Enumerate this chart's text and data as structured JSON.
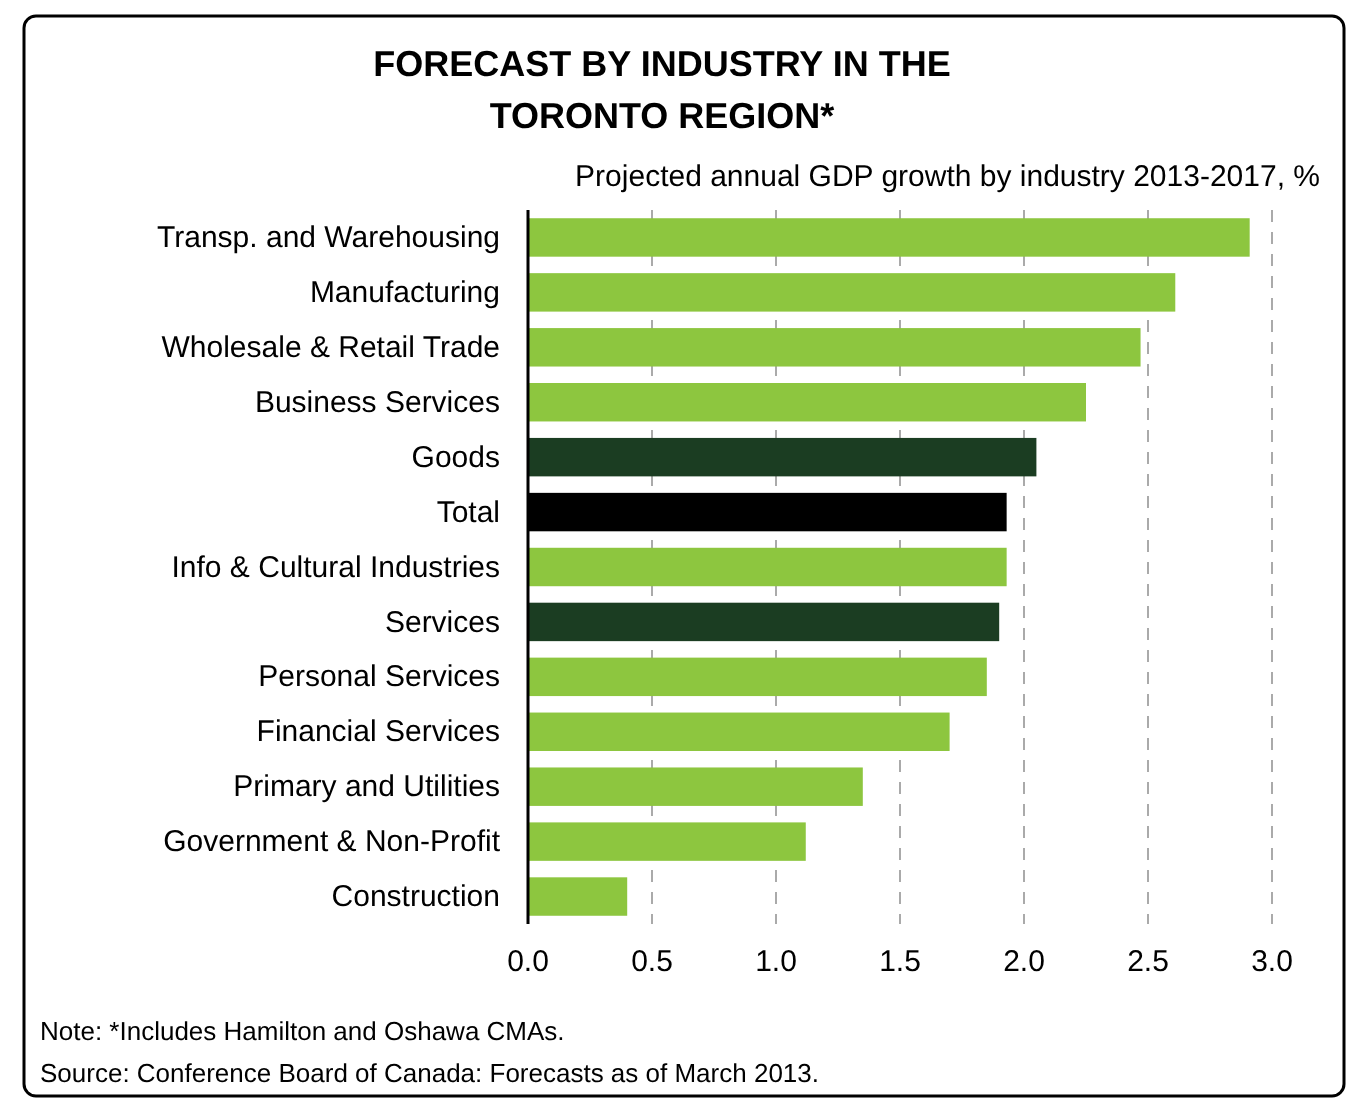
{
  "chart_data": {
    "type": "bar",
    "orientation": "horizontal",
    "title": "FORECAST BY INDUSTRY IN THE\nTORONTO REGION*",
    "subtitle": "Projected annual GDP growth by industry 2013-2017, %",
    "categories": [
      "Transp. and Warehousing",
      "Manufacturing",
      "Wholesale & Retail Trade",
      "Business Services",
      "Goods",
      "Total",
      "Info & Cultural Industries",
      "Services",
      "Personal Services",
      "Financial Services",
      "Primary and Utilities",
      "Government & Non-Profit",
      "Construction"
    ],
    "values": [
      2.91,
      2.61,
      2.47,
      2.25,
      2.05,
      1.93,
      1.93,
      1.9,
      1.85,
      1.7,
      1.35,
      1.12,
      0.4
    ],
    "colors": [
      "#8dc63f",
      "#8dc63f",
      "#8dc63f",
      "#8dc63f",
      "#1b3d22",
      "#000000",
      "#8dc63f",
      "#1b3d22",
      "#8dc63f",
      "#8dc63f",
      "#8dc63f",
      "#8dc63f",
      "#8dc63f"
    ],
    "xlim": [
      0,
      3.0
    ],
    "xticks": [
      {
        "value": 0,
        "label": "0.0"
      },
      0.5,
      {
        "value": 1,
        "label": "1.0"
      },
      1.5,
      {
        "value": 2,
        "label": "2.0"
      },
      2.5,
      {
        "value": 3,
        "label": "3.0"
      }
    ],
    "grid": "x",
    "annotations": [
      "Note: *Includes Hamilton and Oshawa CMAs.",
      "Source: Conference Board of Canada: Forecasts as of March 2013."
    ]
  }
}
